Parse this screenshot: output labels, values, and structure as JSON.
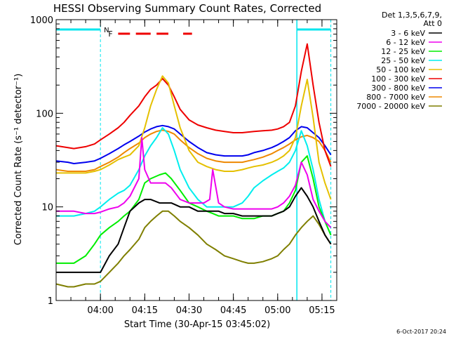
{
  "chart_data": {
    "type": "line",
    "title": "HESSI Observing Summary Count Rates, Corrected",
    "xlabel": "Start Time (30-Apr-15 03:45:02)",
    "ylabel": "Corrected Count Rate (s⁻¹ detector⁻¹)",
    "yscale": "log",
    "ylim": [
      1,
      1000
    ],
    "xlim_minutes": [
      -15,
      80
    ],
    "x_unit": "minutes after 04:00 UT",
    "y_tick_labels": [
      "1",
      "10",
      "100",
      "1000"
    ],
    "y_ticks": [
      1,
      10,
      100,
      1000
    ],
    "x_tick_labels": [
      "04:00",
      "04:15",
      "04:30",
      "04:45",
      "05:00",
      "05:15"
    ],
    "x_ticks": [
      0,
      15,
      30,
      45,
      60,
      75
    ],
    "legend": {
      "placement": "right",
      "header": [
        "Det 1,3,5,6,7,9,",
        "Att 0"
      ]
    },
    "footer_date": "6-Oct-2017 20:24",
    "night_markers": [
      {
        "label": "N",
        "x": [
          -15,
          0
        ],
        "color": "#00e5ee"
      },
      {
        "label": "",
        "x": [
          66.5,
          78
        ],
        "color": "#00e5ee"
      }
    ],
    "flag_markers": [
      {
        "label": "F",
        "segments": [
          [
            6,
            10
          ],
          [
            12,
            17
          ],
          [
            19,
            23
          ],
          [
            28,
            31
          ]
        ],
        "color": "#ee0000"
      }
    ],
    "series": [
      {
        "name": "3 - 6 keV",
        "color": "#000000",
        "x": [
          -15,
          -11,
          -9,
          -5,
          -2,
          0,
          3,
          6,
          8,
          10,
          13,
          15,
          17,
          20,
          24,
          27,
          30,
          33,
          36,
          38,
          40,
          42,
          45,
          48,
          50,
          52,
          55,
          58,
          60,
          62,
          64,
          66,
          68,
          70,
          72,
          74,
          76,
          78
        ],
        "y": [
          2,
          2,
          2,
          2,
          2,
          2,
          3,
          4,
          6,
          9,
          11,
          12,
          12,
          11,
          11,
          10,
          10,
          9,
          9,
          9,
          9,
          8.5,
          8.5,
          8,
          8,
          8,
          8,
          8,
          8.5,
          9,
          10,
          13,
          16,
          13,
          10,
          7,
          5,
          4
        ]
      },
      {
        "name": "6 - 12 keV",
        "color": "#ee00ee",
        "x": [
          -15,
          -11,
          -9,
          -5,
          -2,
          0,
          3,
          6,
          8,
          10,
          13,
          14,
          15,
          17,
          20,
          22,
          24,
          27,
          30,
          33,
          35,
          37,
          38,
          40,
          42,
          45,
          48,
          50,
          52,
          55,
          58,
          60,
          62,
          64,
          66,
          68,
          70,
          72,
          74,
          76,
          78
        ],
        "y": [
          9,
          9,
          9,
          8.5,
          8.5,
          8.8,
          9.5,
          10,
          11,
          13,
          20,
          55,
          25,
          18,
          18,
          18,
          16,
          12,
          11,
          11,
          11,
          12,
          25,
          11,
          10,
          9.5,
          9.5,
          9.5,
          9.5,
          9.5,
          9.5,
          10,
          11,
          13,
          17,
          30,
          22,
          12,
          9,
          7,
          6
        ]
      },
      {
        "name": "12 - 25 keV",
        "color": "#00ee00",
        "x": [
          -15,
          -11,
          -9,
          -5,
          -2,
          0,
          3,
          6,
          8,
          10,
          13,
          15,
          17,
          20,
          22,
          24,
          27,
          30,
          33,
          36,
          38,
          40,
          42,
          45,
          48,
          50,
          52,
          55,
          58,
          60,
          62,
          64,
          66,
          68,
          70,
          72,
          74,
          76,
          78
        ],
        "y": [
          2.5,
          2.5,
          2.5,
          3,
          4,
          5,
          6,
          7,
          8,
          9,
          12,
          18,
          20,
          22,
          23,
          20,
          15,
          11,
          10,
          9,
          8.5,
          8,
          8,
          8,
          7.5,
          7.5,
          7.5,
          8,
          8,
          8.5,
          9,
          11,
          15,
          30,
          35,
          20,
          10,
          7,
          5
        ]
      },
      {
        "name": "25 - 50 keV",
        "color": "#00eeee",
        "x": [
          -15,
          -11,
          -9,
          -5,
          -2,
          0,
          3,
          6,
          8,
          10,
          13,
          15,
          17,
          19,
          21,
          23,
          25,
          27,
          30,
          33,
          36,
          39,
          42,
          45,
          48,
          50,
          52,
          55,
          58,
          60,
          62,
          64,
          66,
          68,
          70,
          72,
          74,
          76,
          78
        ],
        "y": [
          8,
          8,
          8,
          8.5,
          9,
          10,
          12,
          14,
          15,
          17,
          25,
          35,
          45,
          55,
          70,
          60,
          40,
          25,
          16,
          12,
          10,
          10,
          10,
          10,
          11,
          13,
          16,
          19,
          22,
          24,
          26,
          30,
          40,
          65,
          45,
          25,
          12,
          7,
          5
        ]
      },
      {
        "name": "50 - 100 keV",
        "color": "#e5c000",
        "x": [
          -15,
          -11,
          -9,
          -5,
          -2,
          0,
          3,
          6,
          8,
          10,
          13,
          15,
          17,
          19,
          21,
          23,
          25,
          27,
          30,
          33,
          36,
          39,
          42,
          45,
          48,
          50,
          52,
          55,
          58,
          60,
          62,
          64,
          66,
          68,
          70,
          72,
          74,
          76,
          78
        ],
        "y": [
          23,
          23,
          23,
          23,
          24,
          25,
          28,
          32,
          34,
          36,
          45,
          70,
          120,
          180,
          250,
          210,
          120,
          70,
          40,
          30,
          27,
          25,
          24,
          24,
          25,
          26,
          27,
          28,
          30,
          32,
          35,
          40,
          55,
          120,
          230,
          90,
          30,
          18,
          12
        ]
      },
      {
        "name": "100 - 300 keV",
        "color": "#ee0000",
        "x": [
          -15,
          -11,
          -9,
          -5,
          -2,
          0,
          3,
          6,
          8,
          10,
          13,
          15,
          17,
          19,
          21,
          23,
          25,
          27,
          30,
          33,
          36,
          39,
          42,
          45,
          48,
          50,
          52,
          55,
          58,
          60,
          62,
          64,
          66,
          68,
          70,
          72,
          74,
          76,
          78
        ],
        "y": [
          45,
          43,
          42,
          44,
          47,
          52,
          60,
          70,
          80,
          95,
          120,
          150,
          180,
          200,
          235,
          200,
          150,
          110,
          85,
          75,
          70,
          66,
          64,
          62,
          62,
          63,
          64,
          65,
          66,
          68,
          72,
          80,
          120,
          280,
          550,
          200,
          80,
          40,
          27
        ]
      },
      {
        "name": "300 - 800 keV",
        "color": "#0000ee",
        "x": [
          -15,
          -11,
          -9,
          -5,
          -2,
          0,
          3,
          6,
          8,
          10,
          13,
          15,
          17,
          19,
          21,
          23,
          25,
          27,
          30,
          33,
          36,
          39,
          42,
          45,
          48,
          50,
          52,
          55,
          58,
          60,
          62,
          64,
          66,
          68,
          70,
          72,
          74,
          76,
          78
        ],
        "y": [
          31,
          30,
          29,
          30,
          31,
          33,
          37,
          42,
          46,
          50,
          57,
          63,
          68,
          72,
          74,
          72,
          68,
          60,
          50,
          43,
          38,
          36,
          35,
          35,
          35,
          36,
          38,
          40,
          43,
          46,
          50,
          55,
          65,
          72,
          70,
          62,
          55,
          45,
          36
        ]
      },
      {
        "name": "800 - 7000 keV",
        "color": "#ee8800",
        "x": [
          -15,
          -11,
          -9,
          -5,
          -2,
          0,
          3,
          6,
          8,
          10,
          13,
          15,
          17,
          19,
          21,
          23,
          25,
          27,
          30,
          33,
          36,
          39,
          42,
          45,
          48,
          50,
          52,
          55,
          58,
          60,
          62,
          64,
          66,
          68,
          70,
          72,
          74,
          76,
          78
        ],
        "y": [
          25,
          24,
          24,
          24,
          25,
          27,
          30,
          34,
          38,
          42,
          48,
          55,
          60,
          64,
          66,
          64,
          60,
          52,
          43,
          37,
          33,
          31,
          30,
          30,
          30,
          31,
          32,
          34,
          37,
          40,
          43,
          47,
          52,
          56,
          58,
          55,
          50,
          40,
          30
        ]
      },
      {
        "name": "7000 - 20000 keV",
        "color": "#7f7f00",
        "x": [
          -15,
          -11,
          -9,
          -5,
          -2,
          0,
          3,
          6,
          8,
          10,
          13,
          15,
          17,
          19,
          21,
          23,
          25,
          27,
          30,
          33,
          36,
          39,
          42,
          45,
          48,
          50,
          52,
          55,
          58,
          60,
          62,
          64,
          66,
          68,
          70,
          72,
          74,
          76,
          78
        ],
        "y": [
          1.5,
          1.4,
          1.4,
          1.5,
          1.5,
          1.6,
          2,
          2.5,
          3,
          3.5,
          4.5,
          6,
          7,
          8,
          9,
          9,
          8,
          7,
          6,
          5,
          4,
          3.5,
          3,
          2.8,
          2.6,
          2.5,
          2.5,
          2.6,
          2.8,
          3,
          3.5,
          4,
          5,
          6,
          7,
          8,
          6.5,
          5,
          4
        ]
      }
    ]
  }
}
